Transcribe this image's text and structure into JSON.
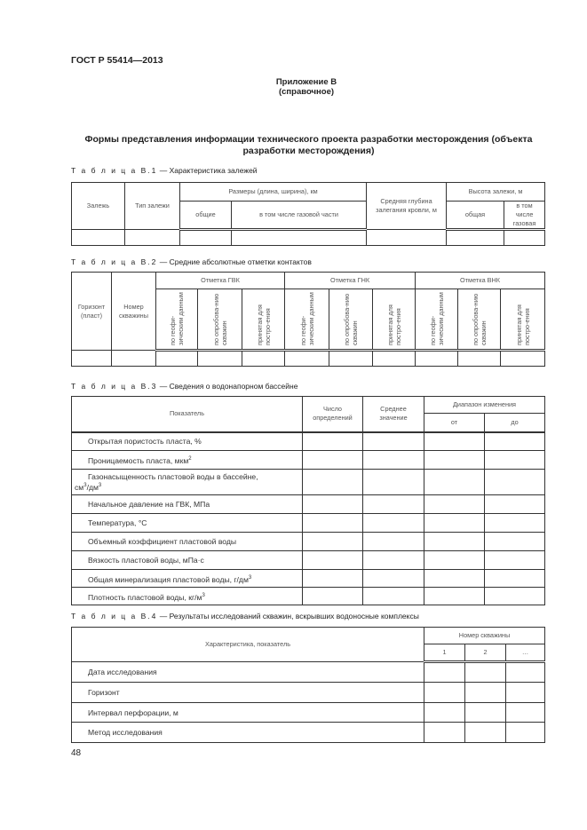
{
  "header": "ГОСТ Р 55414—2013",
  "appendix": {
    "title": "Приложение В",
    "note": "(справочное)"
  },
  "section_title_1": "Формы представления информации технического проекта разработки месторождения (объекта",
  "section_title_2": "разработки месторождения)",
  "t1": {
    "label": "Т а б л и ц а  В.1",
    "caption": " — Характеристика залежей",
    "h": [
      "Залежь",
      "Тип залежи",
      "Размеры (длина, ширина), км",
      "общие",
      "в том числе газовой части",
      "Средняя глубина залегания кровли, м",
      "Высота залежи, м",
      "общая",
      "в том числе газовая"
    ]
  },
  "t2": {
    "label": "Т а б л и ц а  В.2",
    "caption": " — Средние абсолютные отметки контактов",
    "h": [
      "Горизонт (пласт)",
      "Номер скважины",
      "Отметка ГВК",
      "Отметка ГНК",
      "Отметка ВНК"
    ],
    "sub": [
      "по геофи-зическим данным",
      "по опробова-нию скважин",
      "принятая для постро-ения"
    ]
  },
  "t3": {
    "label": "Т а б л и ц а  В.3",
    "caption": " — Сведения о водонапорном бассейне",
    "h": [
      "Показатель",
      "Число определений",
      "Среднее значение",
      "Диапазон изменения",
      "от",
      "до"
    ],
    "rows": [
      "Открытая пористость пласта, %",
      "Проницаемость пласта, мкм",
      "Газонасыщенность пластовой воды в бассейне,",
      "Начальное давление на ГВК, МПа",
      "Температура, °С",
      "Объемный коэффициент пластовой воды",
      "Вязкость пластовой воды, мПа·с",
      "Общая минерализация пластовой воды, г/дм",
      "Плотность пластовой воды, кг/м"
    ],
    "row3_unit": "см",
    "row3_unit2": "/дм",
    "sup2": "2",
    "sup3": "3"
  },
  "t4": {
    "label": "Т а б л и ц а  В.4",
    "caption": " — Результаты исследований скважин, вскрывших водоносные комплексы",
    "h": [
      "Характеристика, показатель",
      "Номер скважины",
      "1",
      "2",
      "…"
    ],
    "rows": [
      "Дата исследования",
      "Горизонт",
      "Интервал перфорации, м",
      "Метод исследования"
    ]
  },
  "page_number": "48"
}
